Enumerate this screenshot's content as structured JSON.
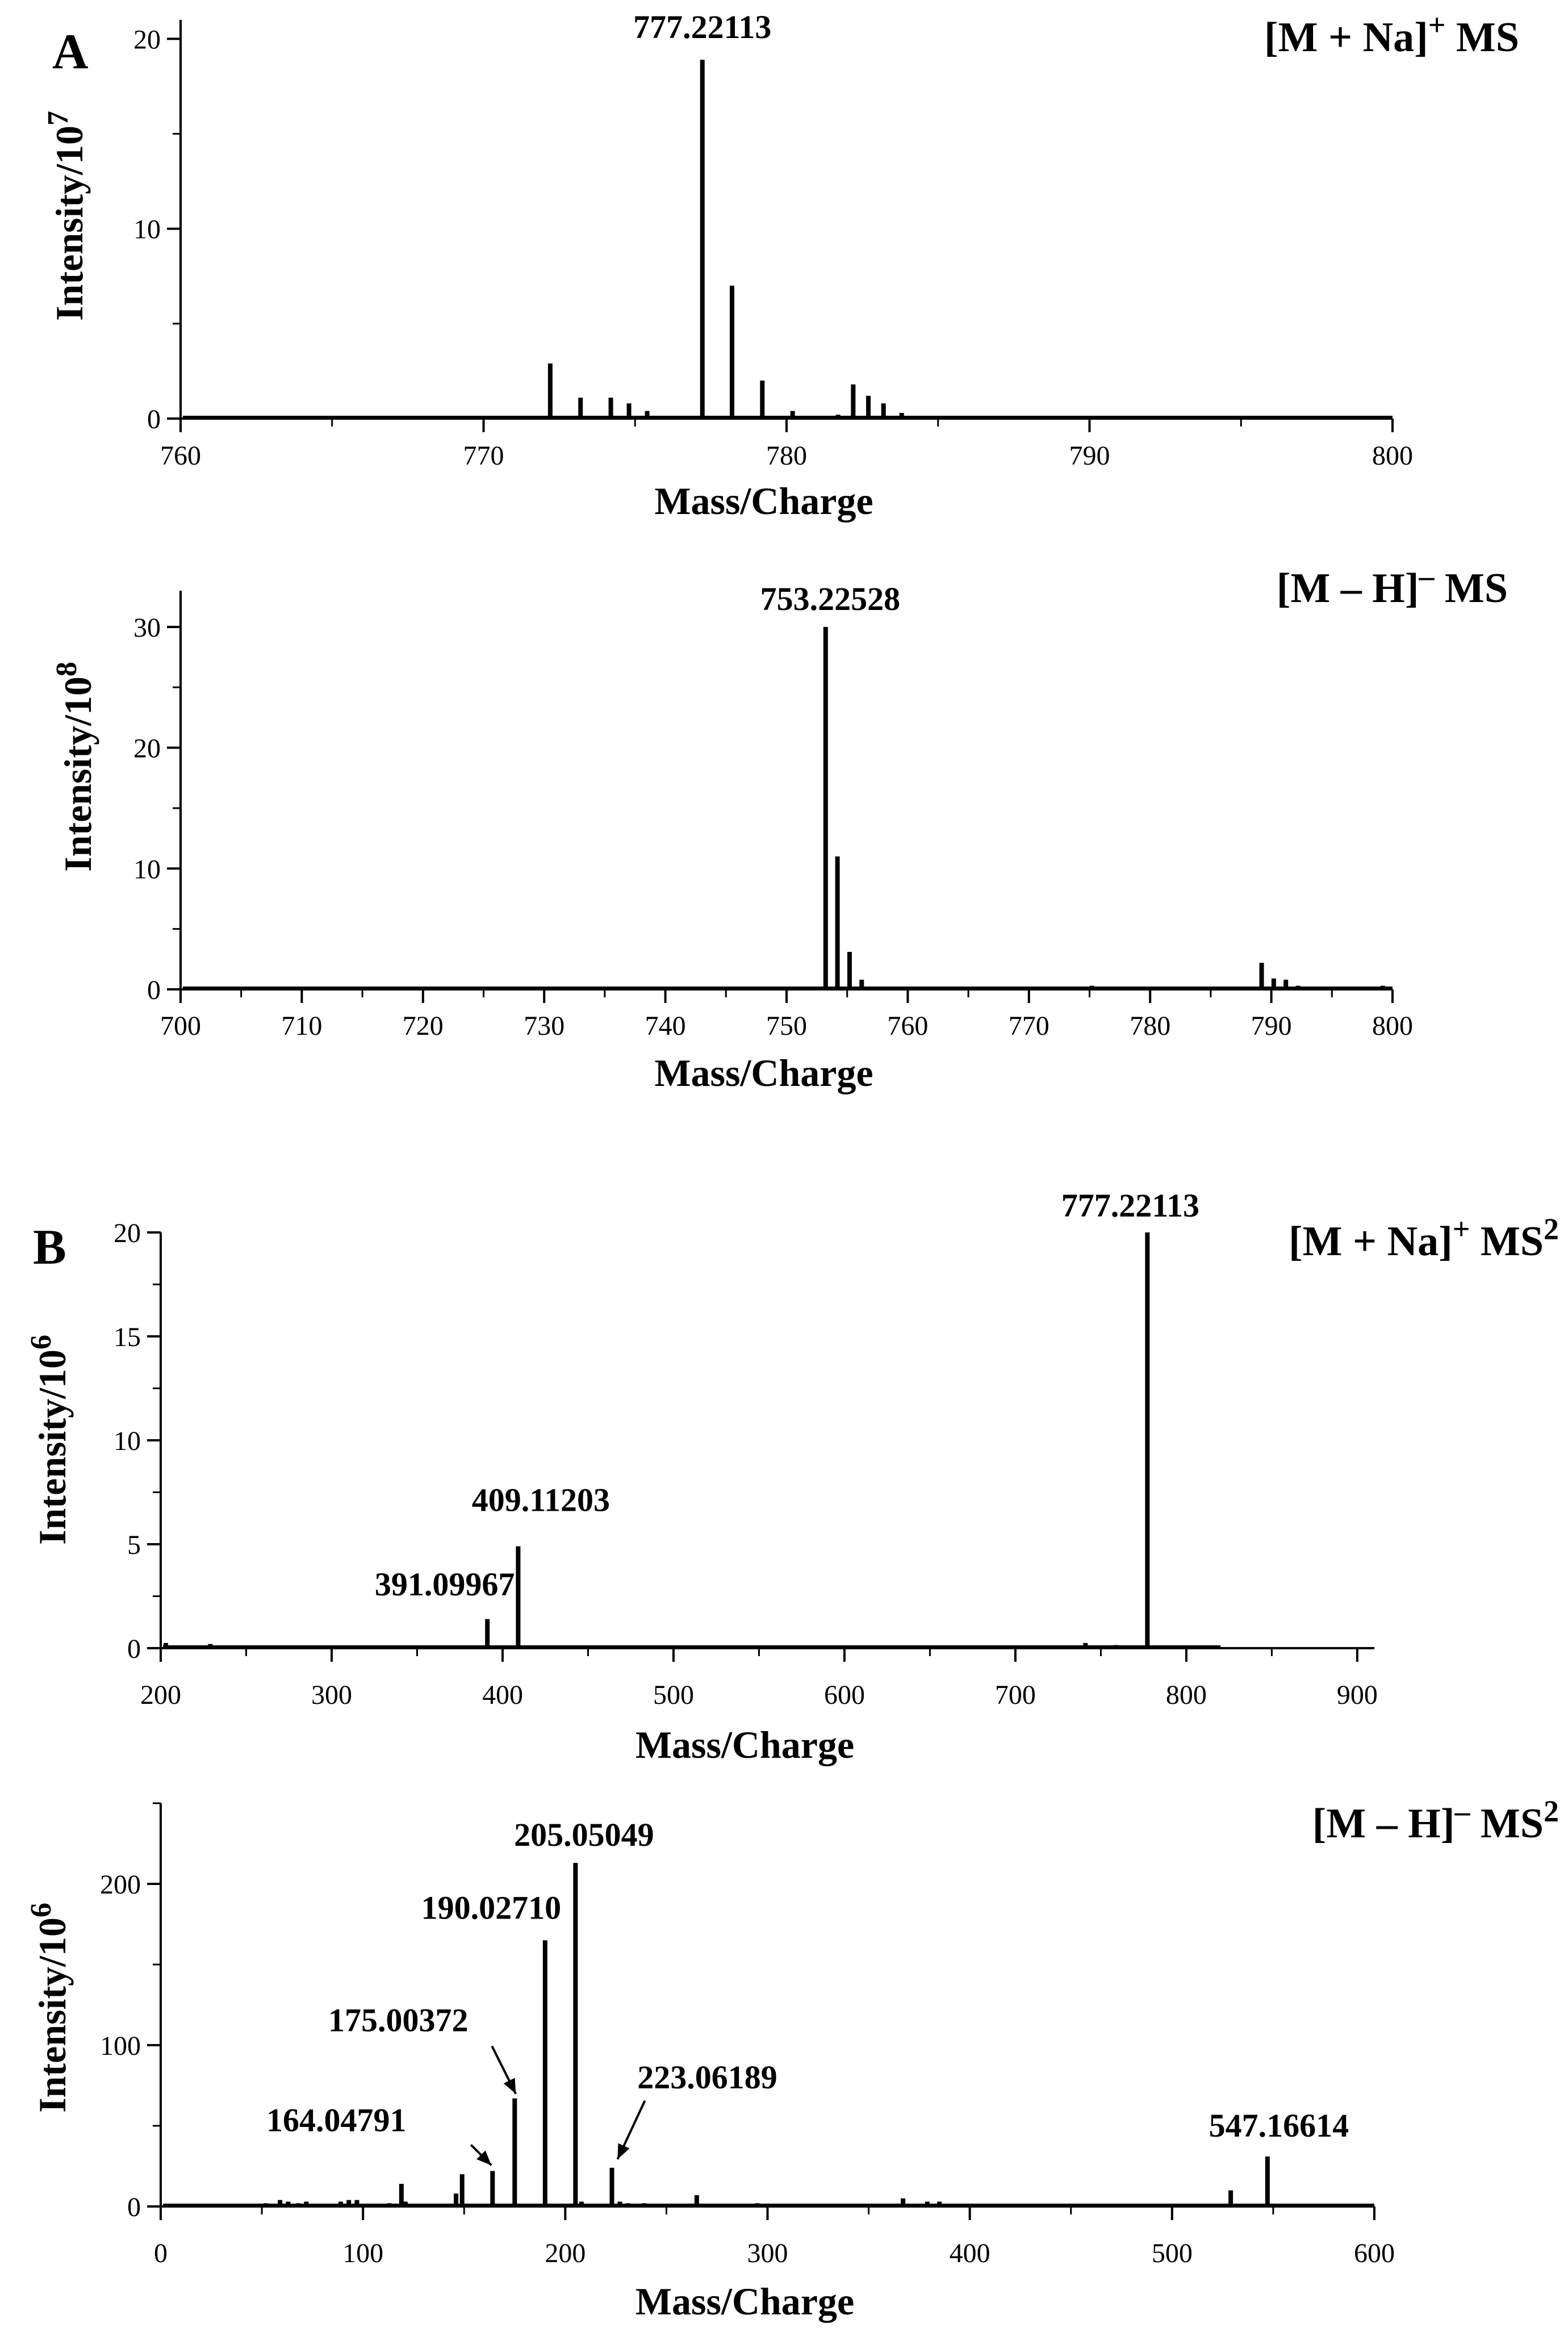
{
  "panels": {
    "A": "A",
    "B": "B"
  },
  "chart_data": [
    {
      "type": "bar",
      "panel": "A",
      "title": "[M + Na]",
      "title_sup": "+",
      "title_suffix": " MS",
      "xlabel": "Mass/Charge",
      "ylabel": "Intensity/10",
      "ylabel_sup": "7",
      "xlim": [
        760,
        800
      ],
      "ylim": [
        0,
        21
      ],
      "xticks": [
        760,
        770,
        780,
        790,
        800
      ],
      "yticks": [
        0,
        10,
        20
      ],
      "grid": false,
      "peaks": [
        {
          "x": 766.2,
          "y": 0.1
        },
        {
          "x": 766.8,
          "y": 0.1
        },
        {
          "x": 767.2,
          "y": 0.1
        },
        {
          "x": 772.2,
          "y": 2.9
        },
        {
          "x": 773.2,
          "y": 1.1
        },
        {
          "x": 774.2,
          "y": 1.1
        },
        {
          "x": 774.8,
          "y": 0.8
        },
        {
          "x": 775.4,
          "y": 0.4
        },
        {
          "x": 775.9,
          "y": 0.1
        },
        {
          "x": 776.4,
          "y": 0.1
        },
        {
          "x": 777.22113,
          "y": 18.9
        },
        {
          "x": 778.2,
          "y": 7.0
        },
        {
          "x": 779.2,
          "y": 2.0
        },
        {
          "x": 780.2,
          "y": 0.4
        },
        {
          "x": 781.2,
          "y": 0.1
        },
        {
          "x": 781.7,
          "y": 0.2
        },
        {
          "x": 782.2,
          "y": 1.8
        },
        {
          "x": 782.7,
          "y": 1.2
        },
        {
          "x": 783.2,
          "y": 0.8
        },
        {
          "x": 783.8,
          "y": 0.3
        },
        {
          "x": 784.3,
          "y": 0.1
        },
        {
          "x": 784.8,
          "y": 0.1
        },
        {
          "x": 786.2,
          "y": 0.1
        },
        {
          "x": 787.2,
          "y": 0.1
        },
        {
          "x": 788.2,
          "y": 0.1
        },
        {
          "x": 789.2,
          "y": 0.1
        },
        {
          "x": 791.2,
          "y": 0.05
        },
        {
          "x": 793.2,
          "y": 0.05
        }
      ],
      "annotations": [
        {
          "text": "777.22113",
          "x": 777.22113,
          "y": 18.9
        }
      ]
    },
    {
      "type": "bar",
      "panel": "A",
      "title": "[M – H]",
      "title_sup": "–",
      "title_suffix": " MS",
      "xlabel": "Mass/Charge",
      "ylabel": "Intensity/10",
      "ylabel_sup": "8",
      "xlim": [
        700,
        800
      ],
      "ylim": [
        0,
        33
      ],
      "xticks": [
        700,
        710,
        720,
        730,
        740,
        750,
        760,
        770,
        780,
        790,
        800
      ],
      "yticks": [
        0,
        10,
        20,
        30
      ],
      "grid": false,
      "peaks": [
        {
          "x": 735.2,
          "y": 0.1
        },
        {
          "x": 745.2,
          "y": 0.1
        },
        {
          "x": 750.2,
          "y": 0.1
        },
        {
          "x": 753.22528,
          "y": 30.0
        },
        {
          "x": 754.2,
          "y": 11.0
        },
        {
          "x": 755.2,
          "y": 3.1
        },
        {
          "x": 756.2,
          "y": 0.8
        },
        {
          "x": 757.2,
          "y": 0.2
        },
        {
          "x": 760.2,
          "y": 0.1
        },
        {
          "x": 765.2,
          "y": 0.1
        },
        {
          "x": 770.2,
          "y": 0.1
        },
        {
          "x": 775.2,
          "y": 0.3
        },
        {
          "x": 776.2,
          "y": 0.1
        },
        {
          "x": 778.2,
          "y": 0.1
        },
        {
          "x": 789.2,
          "y": 2.2
        },
        {
          "x": 790.2,
          "y": 0.9
        },
        {
          "x": 791.2,
          "y": 0.8
        },
        {
          "x": 792.2,
          "y": 0.3
        },
        {
          "x": 793.2,
          "y": 0.1
        },
        {
          "x": 794.2,
          "y": 0.1
        },
        {
          "x": 799.2,
          "y": 0.3
        }
      ],
      "annotations": [
        {
          "text": "753.22528",
          "x": 753.22528,
          "y": 30.0
        }
      ]
    },
    {
      "type": "bar",
      "panel": "B",
      "title": "[M + Na]",
      "title_sup": "+",
      "title_suffix": " MS",
      "title_suffix_sup": "2",
      "xlabel": "Mass/Charge",
      "ylabel": "Intensity/10",
      "ylabel_sup": "6",
      "xlim": [
        200,
        910
      ],
      "x_axis_end": 820,
      "ylim": [
        0,
        20
      ],
      "xticks": [
        200,
        300,
        400,
        500,
        600,
        700,
        800,
        900
      ],
      "yticks": [
        0,
        5,
        10,
        15,
        20
      ],
      "grid": false,
      "peaks": [
        {
          "x": 203,
          "y": 0.25
        },
        {
          "x": 229,
          "y": 0.2
        },
        {
          "x": 320,
          "y": 0.1
        },
        {
          "x": 391.09967,
          "y": 1.4
        },
        {
          "x": 409.11203,
          "y": 4.9
        },
        {
          "x": 741,
          "y": 0.25
        },
        {
          "x": 759,
          "y": 0.15
        },
        {
          "x": 777.22113,
          "y": 20.0
        }
      ],
      "annotations": [
        {
          "text": "777.22113",
          "x": 777.22113,
          "y": 20.0
        },
        {
          "text": "409.11203",
          "x": 409.11203,
          "y": 4.9
        },
        {
          "text": "391.09967",
          "x": 391.09967,
          "y": 1.4
        }
      ]
    },
    {
      "type": "bar",
      "panel": "B",
      "title": "[M – H]",
      "title_sup": "–",
      "title_suffix": " MS",
      "title_suffix_sup": "2",
      "xlabel": "Mass/Charge",
      "ylabel": "Intensity/10",
      "ylabel_sup": "6",
      "xlim": [
        0,
        600
      ],
      "ylim": [
        0,
        250
      ],
      "xticks": [
        0,
        100,
        200,
        300,
        400,
        500,
        600
      ],
      "yticks": [
        0,
        100,
        200
      ],
      "grid": false,
      "peaks": [
        {
          "x": 52,
          "y": 2
        },
        {
          "x": 59,
          "y": 4
        },
        {
          "x": 63,
          "y": 3
        },
        {
          "x": 68,
          "y": 2
        },
        {
          "x": 72,
          "y": 3
        },
        {
          "x": 89,
          "y": 3
        },
        {
          "x": 93,
          "y": 4
        },
        {
          "x": 97,
          "y": 4
        },
        {
          "x": 113,
          "y": 2
        },
        {
          "x": 119,
          "y": 14
        },
        {
          "x": 121,
          "y": 3
        },
        {
          "x": 146,
          "y": 8
        },
        {
          "x": 149,
          "y": 20
        },
        {
          "x": 164.04791,
          "y": 22
        },
        {
          "x": 175.00372,
          "y": 67
        },
        {
          "x": 190.0271,
          "y": 165
        },
        {
          "x": 205.05049,
          "y": 213
        },
        {
          "x": 208,
          "y": 3
        },
        {
          "x": 223.06189,
          "y": 24
        },
        {
          "x": 227,
          "y": 3
        },
        {
          "x": 231,
          "y": 2
        },
        {
          "x": 239,
          "y": 2
        },
        {
          "x": 265,
          "y": 7
        },
        {
          "x": 295,
          "y": 2
        },
        {
          "x": 367,
          "y": 5
        },
        {
          "x": 379,
          "y": 3
        },
        {
          "x": 385,
          "y": 3
        },
        {
          "x": 529,
          "y": 10
        },
        {
          "x": 547.16614,
          "y": 31
        }
      ],
      "annotations": [
        {
          "text": "205.05049",
          "x": 205.05049,
          "y": 213
        },
        {
          "text": "190.02710",
          "x": 190.0271,
          "y": 165
        },
        {
          "text": "175.00372",
          "x": 175.00372,
          "y": 67
        },
        {
          "text": "164.04791",
          "x": 164.04791,
          "y": 22
        },
        {
          "text": "223.06189",
          "x": 223.06189,
          "y": 24
        },
        {
          "text": "547.16614",
          "x": 547.16614,
          "y": 31
        }
      ]
    }
  ]
}
